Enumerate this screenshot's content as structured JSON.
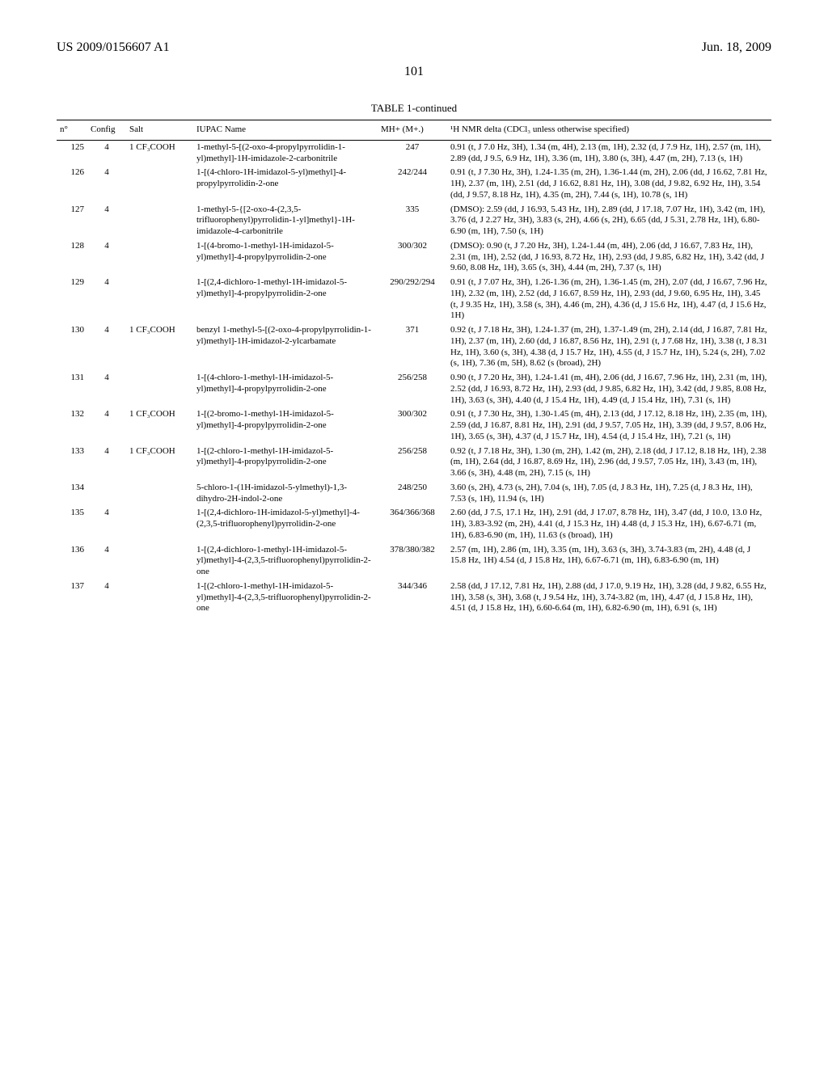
{
  "header": {
    "patent_number": "US 2009/0156607 A1",
    "date": "Jun. 18, 2009",
    "page_number": "101"
  },
  "table": {
    "title": "TABLE 1-continued",
    "columns": {
      "n": "n°",
      "config": "Config",
      "salt": "Salt",
      "iupac": "IUPAC Name",
      "mh": "MH+ (M+.)",
      "nmr": "¹H NMR delta (CDCl₃ unless otherwise specified)"
    },
    "rows": [
      {
        "n": "125",
        "config": "4",
        "salt": "1 CF₃COOH",
        "iupac": "1-methyl-5-[(2-oxo-4-propylpyrrolidin-1-yl)methyl]-1H-imidazole-2-carbonitrile",
        "mh": "247",
        "nmr": "0.91 (t, J 7.0 Hz, 3H), 1.34 (m, 4H), 2.13 (m, 1H), 2.32 (d, J 7.9 Hz, 1H), 2.57 (m, 1H), 2.89 (dd, J 9.5, 6.9 Hz, 1H), 3.36 (m, 1H), 3.80 (s, 3H), 4.47 (m, 2H), 7.13 (s, 1H)"
      },
      {
        "n": "126",
        "config": "4",
        "salt": "",
        "iupac": "1-[(4-chloro-1H-imidazol-5-yl)methyl]-4-propylpyrrolidin-2-one",
        "mh": "242/244",
        "nmr": "0.91 (t, J 7.30 Hz, 3H), 1.24-1.35 (m, 2H), 1.36-1.44 (m, 2H), 2.06 (dd, J 16.62, 7.81 Hz, 1H), 2.37 (m, 1H), 2.51 (dd, J 16.62, 8.81 Hz, 1H), 3.08 (dd, J 9.82, 6.92 Hz, 1H), 3.54 (dd, J 9.57, 8.18 Hz, 1H), 4.35 (m, 2H), 7.44 (s, 1H), 10.78 (s, 1H)"
      },
      {
        "n": "127",
        "config": "4",
        "salt": "",
        "iupac": "1-methyl-5-{[2-oxo-4-(2,3,5-trifluorophenyl)pyrrolidin-1-yl]methyl}-1H-imidazole-4-carbonitrile",
        "mh": "335",
        "nmr": "(DMSO): 2.59 (dd, J 16.93, 5.43 Hz, 1H), 2.89 (dd, J 17.18, 7.07 Hz, 1H), 3.42 (m, 1H), 3.76 (d, J 2.27 Hz, 3H), 3.83 (s, 2H), 4.66 (s, 2H), 6.65 (dd, J 5.31, 2.78 Hz, 1H), 6.80-6.90 (m, 1H), 7.50 (s, 1H)"
      },
      {
        "n": "128",
        "config": "4",
        "salt": "",
        "iupac": "1-[(4-bromo-1-methyl-1H-imidazol-5-yl)methyl]-4-propylpyrrolidin-2-one",
        "mh": "300/302",
        "nmr": "(DMSO): 0.90 (t, J 7.20 Hz, 3H), 1.24-1.44 (m, 4H), 2.06 (dd, J 16.67, 7.83 Hz, 1H), 2.31 (m, 1H), 2.52 (dd, J 16.93, 8.72 Hz, 1H), 2.93 (dd, J 9.85, 6.82 Hz, 1H), 3.42 (dd, J 9.60, 8.08 Hz, 1H), 3.65 (s, 3H), 4.44 (m, 2H), 7.37 (s, 1H)"
      },
      {
        "n": "129",
        "config": "4",
        "salt": "",
        "iupac": "1-[(2,4-dichloro-1-methyl-1H-imidazol-5-yl)methyl]-4-propylpyrrolidin-2-one",
        "mh": "290/292/294",
        "nmr": "0.91 (t, J 7.07 Hz, 3H), 1.26-1.36 (m, 2H), 1.36-1.45 (m, 2H), 2.07 (dd, J 16.67, 7.96 Hz, 1H), 2.32 (m, 1H), 2.52 (dd, J 16.67, 8.59 Hz, 1H), 2.93 (dd, J 9.60, 6.95 Hz, 1H), 3.45 (t, J 9.35 Hz, 1H), 3.58 (s, 3H), 4.46 (m, 2H), 4.36 (d, J 15.6 Hz, 1H), 4.47 (d, J 15.6 Hz, 1H)"
      },
      {
        "n": "130",
        "config": "4",
        "salt": "1 CF₃COOH",
        "iupac": "benzyl 1-methyl-5-[(2-oxo-4-propylpyrrolidin-1-yl)methyl]-1H-imidazol-2-ylcarbamate",
        "mh": "371",
        "nmr": "0.92 (t, J 7.18 Hz, 3H), 1.24-1.37 (m, 2H), 1.37-1.49 (m, 2H), 2.14 (dd, J 16.87, 7.81 Hz, 1H), 2.37 (m, 1H), 2.60 (dd, J 16.87, 8.56 Hz, 1H), 2.91 (t, J 7.68 Hz, 1H), 3.38 (t, J 8.31 Hz, 1H), 3.60 (s, 3H), 4.38 (d, J 15.7 Hz, 1H), 4.55 (d, J 15.7 Hz, 1H), 5.24 (s, 2H), 7.02 (s, 1H), 7.36 (m, 5H), 8.62 (s (broad), 2H)"
      },
      {
        "n": "131",
        "config": "4",
        "salt": "",
        "iupac": "1-[(4-chloro-1-methyl-1H-imidazol-5-yl)methyl]-4-propylpyrrolidin-2-one",
        "mh": "256/258",
        "nmr": "0.90 (t, J 7.20 Hz, 3H), 1.24-1.41 (m, 4H), 2.06 (dd, J 16.67, 7.96 Hz, 1H), 2.31 (m, 1H), 2.52 (dd, J 16.93, 8.72 Hz, 1H), 2.93 (dd, J 9.85, 6.82 Hz, 1H), 3.42 (dd, J 9.85, 8.08 Hz, 1H), 3.63 (s, 3H), 4.40 (d, J 15.4 Hz, 1H), 4.49 (d, J 15.4 Hz, 1H), 7.31 (s, 1H)"
      },
      {
        "n": "132",
        "config": "4",
        "salt": "1 CF₃COOH",
        "iupac": "1-[(2-bromo-1-methyl-1H-imidazol-5-yl)methyl]-4-propylpyrrolidin-2-one",
        "mh": "300/302",
        "nmr": "0.91 (t, J 7.30 Hz, 3H), 1.30-1.45 (m, 4H), 2.13 (dd, J 17.12, 8.18 Hz, 1H), 2.35 (m, 1H), 2.59 (dd, J 16.87, 8.81 Hz, 1H), 2.91 (dd, J 9.57, 7.05 Hz, 1H), 3.39 (dd, J 9.57, 8.06 Hz, 1H), 3.65 (s, 3H), 4.37 (d, J 15.7 Hz, 1H), 4.54 (d, J 15.4 Hz, 1H), 7.21 (s, 1H)"
      },
      {
        "n": "133",
        "config": "4",
        "salt": "1 CF₃COOH",
        "iupac": "1-[(2-chloro-1-methyl-1H-imidazol-5-yl)methyl]-4-propylpyrrolidin-2-one",
        "mh": "256/258",
        "nmr": "0.92 (t, J 7.18 Hz, 3H), 1.30 (m, 2H), 1.42 (m, 2H), 2.18 (dd, J 17.12, 8.18 Hz, 1H), 2.38 (m, 1H), 2.64 (dd, J 16.87, 8.69 Hz, 1H), 2.96 (dd, J 9.57, 7.05 Hz, 1H), 3.43 (m, 1H), 3.66 (s, 3H), 4.48 (m, 2H), 7.15 (s, 1H)"
      },
      {
        "n": "134",
        "config": "",
        "salt": "",
        "iupac": "5-chloro-1-(1H-imidazol-5-ylmethyl)-1,3-dihydro-2H-indol-2-one",
        "mh": "248/250",
        "nmr": "3.60 (s, 2H), 4.73 (s, 2H), 7.04 (s, 1H), 7.05 (d, J 8.3 Hz, 1H), 7.25 (d, J 8.3 Hz, 1H), 7.53 (s, 1H), 11.94 (s, 1H)"
      },
      {
        "n": "135",
        "config": "4",
        "salt": "",
        "iupac": "1-[(2,4-dichloro-1H-imidazol-5-yl)methyl]-4-(2,3,5-trifluorophenyl)pyrrolidin-2-one",
        "mh": "364/366/368",
        "nmr": "2.60 (dd, J 7.5, 17.1 Hz, 1H), 2.91 (dd, J 17.07, 8.78 Hz, 1H), 3.47 (dd, J 10.0, 13.0 Hz, 1H), 3.83-3.92 (m, 2H), 4.41 (d, J 15.3 Hz, 1H) 4.48 (d, J 15.3 Hz, 1H), 6.67-6.71 (m, 1H), 6.83-6.90 (m, 1H), 11.63 (s (broad), 1H)"
      },
      {
        "n": "136",
        "config": "4",
        "salt": "",
        "iupac": "1-[(2,4-dichloro-1-methyl-1H-imidazol-5-yl)methyl]-4-(2,3,5-trifluorophenyl)pyrrolidin-2-one",
        "mh": "378/380/382",
        "nmr": "2.57 (m, 1H), 2.86 (m, 1H), 3.35 (m, 1H), 3.63 (s, 3H), 3.74-3.83 (m, 2H), 4.48 (d, J 15.8 Hz, 1H) 4.54 (d, J 15.8 Hz, 1H), 6.67-6.71 (m, 1H), 6.83-6.90 (m, 1H)"
      },
      {
        "n": "137",
        "config": "4",
        "salt": "",
        "iupac": "1-[(2-chloro-1-methyl-1H-imidazol-5-yl)methyl]-4-(2,3,5-trifluorophenyl)pyrrolidin-2-one",
        "mh": "344/346",
        "nmr": "2.58 (dd, J 17.12, 7.81 Hz, 1H), 2.88 (dd, J 17.0, 9.19 Hz, 1H), 3.28 (dd, J 9.82, 6.55 Hz, 1H), 3.58 (s, 3H), 3.68 (t, J 9.54 Hz, 1H), 3.74-3.82 (m, 1H), 4.47 (d, J 15.8 Hz, 1H), 4.51 (d, J 15.8 Hz, 1H), 6.60-6.64 (m, 1H), 6.82-6.90 (m, 1H), 6.91 (s, 1H)"
      }
    ]
  }
}
